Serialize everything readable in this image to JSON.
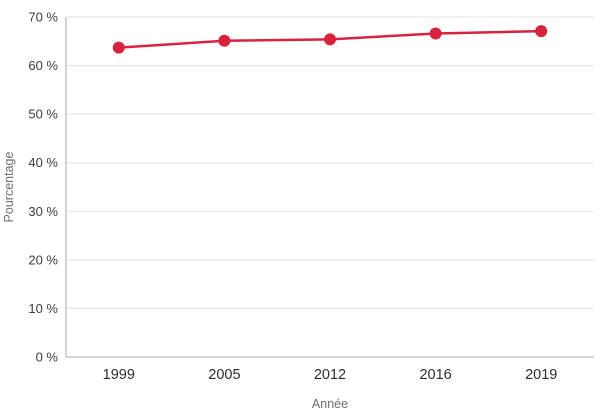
{
  "chart_data": {
    "type": "line",
    "title": "",
    "xlabel": "Année",
    "ylabel": "Pourcentage",
    "categories": [
      "1999",
      "2005",
      "2012",
      "2016",
      "2019"
    ],
    "series": [
      {
        "name": "Pourcentage",
        "values": [
          63.7,
          65.1,
          65.4,
          66.6,
          67.1
        ],
        "color": "#d8233f"
      }
    ],
    "ylim": [
      0,
      70
    ],
    "ytick_step": 10,
    "ytick_suffix": " %",
    "grid": "horizontal",
    "legend": "none",
    "marker": "circle"
  },
  "colors": {
    "line": "#d8233f",
    "marker": "#d8233f",
    "grid": "#e2e2e2",
    "axis": "#aaaaaa",
    "tick_text": "#3d3d3d",
    "axis_title_text": "#6f6f6f",
    "background": "#ffffff"
  }
}
